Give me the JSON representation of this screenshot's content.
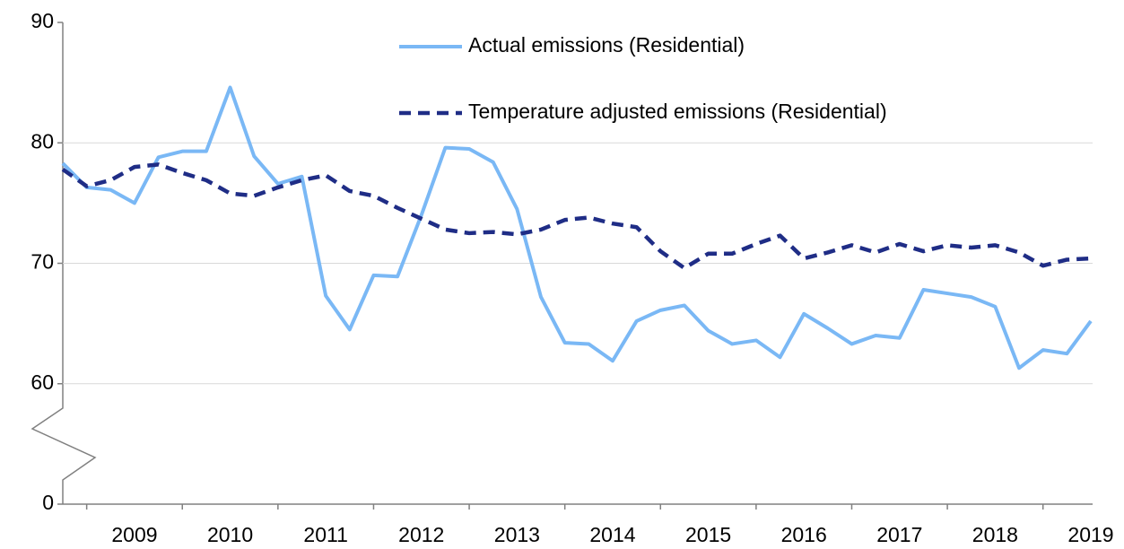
{
  "chart_data": {
    "type": "line",
    "categories": [
      null,
      null,
      null,
      "2009",
      null,
      null,
      null,
      "2010",
      null,
      null,
      null,
      "2011",
      null,
      null,
      null,
      "2012",
      null,
      null,
      null,
      "2013",
      null,
      null,
      null,
      "2014",
      null,
      null,
      null,
      "2015",
      null,
      null,
      null,
      "2016",
      null,
      null,
      null,
      "2017",
      null,
      null,
      null,
      "2018",
      null,
      null,
      null,
      "2019"
    ],
    "series": [
      {
        "name": "Actual emissions (Residential)",
        "color": "#7ab8f5",
        "style": "solid",
        "values": [
          78.3,
          76.3,
          76.1,
          75.0,
          78.8,
          79.3,
          79.3,
          84.6,
          78.9,
          76.6,
          77.2,
          67.3,
          64.5,
          69.0,
          68.9,
          74.0,
          79.6,
          79.5,
          78.4,
          74.5,
          67.2,
          63.4,
          63.3,
          61.9,
          65.2,
          66.1,
          66.5,
          64.4,
          63.3,
          63.6,
          62.2,
          65.8,
          64.6,
          63.3,
          64.0,
          63.8,
          67.8,
          67.5,
          67.2,
          66.4,
          61.3,
          62.8,
          62.5,
          65.2
        ]
      },
      {
        "name": "Temperature adjusted emissions (Residential)",
        "color": "#1f2d86",
        "style": "dashed",
        "values": [
          77.8,
          76.4,
          76.9,
          78.0,
          78.2,
          77.5,
          76.9,
          75.8,
          75.6,
          76.3,
          76.9,
          77.3,
          76.0,
          75.6,
          74.6,
          73.7,
          72.8,
          72.5,
          72.6,
          72.4,
          72.8,
          73.6,
          73.8,
          73.3,
          73.0,
          71.0,
          69.6,
          70.8,
          70.8,
          71.6,
          72.3,
          70.4,
          70.9,
          71.5,
          70.9,
          71.6,
          71.0,
          71.5,
          71.3,
          71.5,
          70.9,
          69.8,
          70.3,
          70.4
        ]
      }
    ],
    "ylim": [
      0,
      90
    ],
    "yticks": [
      0,
      60,
      70,
      80,
      90
    ],
    "axis_break": true,
    "grid": true,
    "legend": "top"
  }
}
